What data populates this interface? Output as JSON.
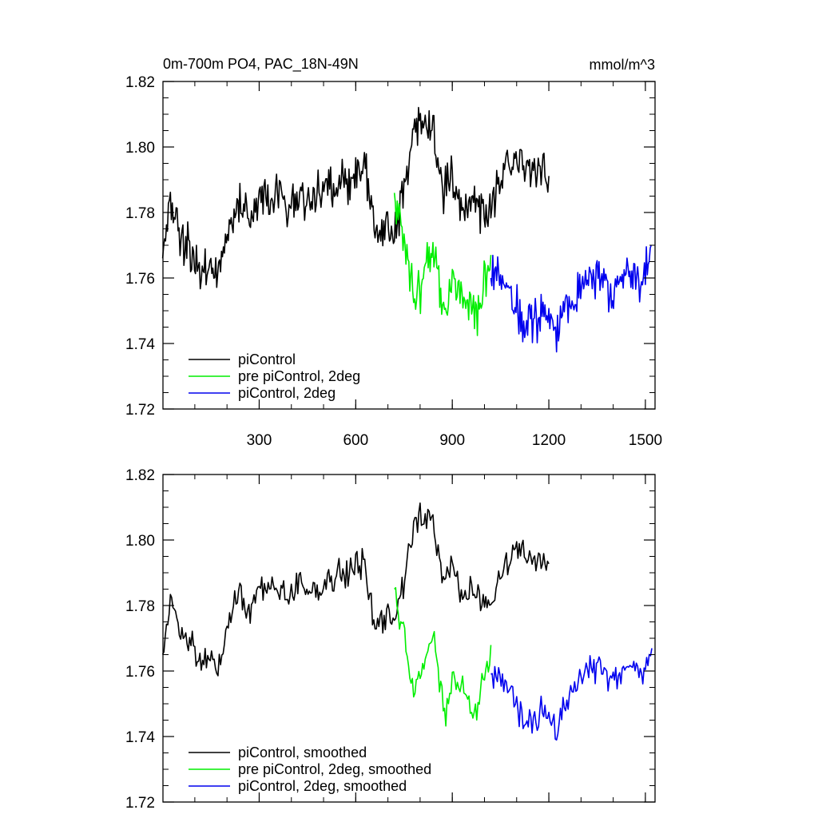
{
  "chart_data": [
    {
      "type": "line",
      "title": "0m-700m PO4, PAC_18N-49N",
      "units": "mmol/m^3",
      "xlabel": "",
      "ylabel": "",
      "xlim": [
        1,
        1530
      ],
      "ylim": [
        1.72,
        1.82
      ],
      "x_ticks": [
        300,
        600,
        900,
        1200,
        1500
      ],
      "y_ticks": [
        1.72,
        1.74,
        1.76,
        1.78,
        1.8,
        1.82
      ],
      "grid": false,
      "legend_position": "bottom-left",
      "series": [
        {
          "name": "piControl",
          "color": "#000000",
          "x_step": 30,
          "x": [
            0,
            30,
            60,
            90,
            120,
            150,
            180,
            210,
            240,
            270,
            300,
            330,
            360,
            390,
            420,
            450,
            480,
            510,
            540,
            570,
            600,
            630,
            660,
            690,
            720,
            750,
            780,
            810,
            840,
            870,
            900,
            930,
            960,
            990,
            1020,
            1050,
            1080,
            1110,
            1140,
            1170,
            1200
          ],
          "values": [
            1.766,
            1.782,
            1.771,
            1.768,
            1.762,
            1.765,
            1.762,
            1.777,
            1.783,
            1.779,
            1.784,
            1.785,
            1.787,
            1.779,
            1.786,
            1.783,
            1.786,
            1.786,
            1.789,
            1.789,
            1.791,
            1.792,
            1.774,
            1.775,
            1.772,
            1.785,
            1.806,
            1.808,
            1.807,
            1.786,
            1.791,
            1.783,
            1.784,
            1.779,
            1.781,
            1.789,
            1.793,
            1.798,
            1.792,
            1.794,
            1.79
          ]
        },
        {
          "name": "pre piControl, 2deg",
          "color": "#00ee00",
          "x_step": 20,
          "x": [
            720,
            740,
            760,
            780,
            800,
            820,
            840,
            860,
            880,
            900,
            920,
            940,
            960,
            980,
            1000,
            1020
          ],
          "values": [
            1.786,
            1.774,
            1.765,
            1.757,
            1.755,
            1.766,
            1.77,
            1.755,
            1.75,
            1.757,
            1.755,
            1.753,
            1.75,
            1.748,
            1.76,
            1.764
          ]
        },
        {
          "name": "piControl, 2deg",
          "color": "#0000ee",
          "x_step": 20,
          "x": [
            1020,
            1040,
            1060,
            1080,
            1100,
            1120,
            1140,
            1160,
            1180,
            1200,
            1220,
            1240,
            1260,
            1280,
            1300,
            1320,
            1340,
            1360,
            1380,
            1400,
            1420,
            1440,
            1460,
            1480,
            1500,
            1520
          ],
          "values": [
            1.76,
            1.76,
            1.758,
            1.756,
            1.751,
            1.745,
            1.744,
            1.747,
            1.751,
            1.747,
            1.744,
            1.747,
            1.752,
            1.754,
            1.757,
            1.76,
            1.76,
            1.761,
            1.758,
            1.755,
            1.757,
            1.761,
            1.761,
            1.76,
            1.762,
            1.765
          ]
        }
      ]
    },
    {
      "type": "line",
      "title": "",
      "units": "",
      "xlabel": "",
      "ylabel": "",
      "xlim": [
        1,
        1530
      ],
      "ylim": [
        1.72,
        1.82
      ],
      "x_ticks": [
        300,
        600,
        900,
        1200,
        1500
      ],
      "y_ticks": [
        1.72,
        1.74,
        1.76,
        1.78,
        1.8,
        1.82
      ],
      "grid": false,
      "legend_position": "bottom-left",
      "series": [
        {
          "name": "piControl, smoothed",
          "color": "#000000",
          "x_step": 30,
          "x": [
            0,
            30,
            60,
            90,
            120,
            150,
            180,
            210,
            240,
            270,
            300,
            330,
            360,
            390,
            420,
            450,
            480,
            510,
            540,
            570,
            600,
            630,
            660,
            690,
            720,
            750,
            780,
            810,
            840,
            870,
            900,
            930,
            960,
            990,
            1020,
            1050,
            1080,
            1110,
            1140,
            1170,
            1200
          ],
          "values": [
            1.765,
            1.782,
            1.771,
            1.768,
            1.762,
            1.765,
            1.762,
            1.778,
            1.783,
            1.779,
            1.784,
            1.786,
            1.787,
            1.781,
            1.787,
            1.784,
            1.786,
            1.786,
            1.79,
            1.79,
            1.792,
            1.792,
            1.774,
            1.775,
            1.776,
            1.786,
            1.806,
            1.807,
            1.806,
            1.787,
            1.792,
            1.784,
            1.786,
            1.78,
            1.782,
            1.79,
            1.793,
            1.798,
            1.794,
            1.795,
            1.792
          ]
        },
        {
          "name": "pre piControl, 2deg, smoothed",
          "color": "#00ee00",
          "x_step": 20,
          "x": [
            720,
            740,
            760,
            780,
            800,
            820,
            840,
            860,
            880,
            900,
            920,
            940,
            960,
            980,
            1000,
            1020
          ],
          "values": [
            1.785,
            1.774,
            1.766,
            1.755,
            1.757,
            1.765,
            1.77,
            1.757,
            1.747,
            1.756,
            1.756,
            1.752,
            1.748,
            1.747,
            1.761,
            1.766
          ]
        },
        {
          "name": "piControl, 2deg, smoothed",
          "color": "#0000ee",
          "x_step": 20,
          "x": [
            1020,
            1040,
            1060,
            1080,
            1100,
            1120,
            1140,
            1160,
            1180,
            1200,
            1220,
            1240,
            1260,
            1280,
            1300,
            1320,
            1340,
            1360,
            1380,
            1400,
            1420,
            1440,
            1460,
            1480,
            1500,
            1520
          ],
          "values": [
            1.759,
            1.76,
            1.757,
            1.754,
            1.75,
            1.745,
            1.743,
            1.746,
            1.75,
            1.745,
            1.743,
            1.746,
            1.752,
            1.755,
            1.758,
            1.761,
            1.76,
            1.762,
            1.759,
            1.756,
            1.758,
            1.761,
            1.761,
            1.759,
            1.763,
            1.765
          ]
        }
      ]
    }
  ]
}
